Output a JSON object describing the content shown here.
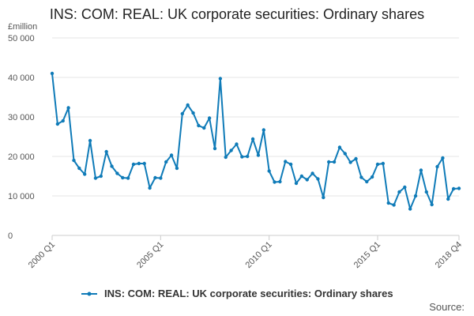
{
  "colors": {
    "series": "#0f7bb8",
    "grid": "#e4e4e4",
    "axis": "#cccccc"
  },
  "labels": {
    "source": "Source:"
  },
  "chart_data": {
    "type": "line",
    "title": "INS: COM: REAL: UK corporate securities: Ordinary shares",
    "ylabel": "£million",
    "xlabel": "",
    "ylim": [
      0,
      50000
    ],
    "yticks": [
      0,
      10000,
      20000,
      30000,
      40000,
      50000
    ],
    "ytick_labels": [
      "0",
      "10 000",
      "20 000",
      "30 000",
      "40 000",
      "50 000"
    ],
    "xtick_labels": [
      "2000 Q1",
      "2005 Q1",
      "2010 Q1",
      "2015 Q1",
      "2018 Q4"
    ],
    "xtick_positions": [
      "2000 Q1",
      "2005 Q1",
      "2010 Q1",
      "2015 Q1",
      "2018 Q4"
    ],
    "grid": "horizontal",
    "legend": "bottom",
    "series": [
      {
        "name": "INS: COM: REAL: UK corporate securities: Ordinary shares",
        "x": [
          "2000 Q1",
          "2000 Q2",
          "2000 Q3",
          "2000 Q4",
          "2001 Q1",
          "2001 Q2",
          "2001 Q3",
          "2001 Q4",
          "2002 Q1",
          "2002 Q2",
          "2002 Q3",
          "2002 Q4",
          "2003 Q1",
          "2003 Q2",
          "2003 Q3",
          "2003 Q4",
          "2004 Q1",
          "2004 Q2",
          "2004 Q3",
          "2004 Q4",
          "2005 Q1",
          "2005 Q2",
          "2005 Q3",
          "2005 Q4",
          "2006 Q1",
          "2006 Q2",
          "2006 Q3",
          "2006 Q4",
          "2007 Q1",
          "2007 Q2",
          "2007 Q3",
          "2007 Q4",
          "2008 Q1",
          "2008 Q2",
          "2008 Q3",
          "2008 Q4",
          "2009 Q1",
          "2009 Q2",
          "2009 Q3",
          "2009 Q4",
          "2010 Q1",
          "2010 Q2",
          "2010 Q3",
          "2010 Q4",
          "2011 Q1",
          "2011 Q2",
          "2011 Q3",
          "2011 Q4",
          "2012 Q1",
          "2012 Q2",
          "2012 Q3",
          "2012 Q4",
          "2013 Q1",
          "2013 Q2",
          "2013 Q3",
          "2013 Q4",
          "2014 Q1",
          "2014 Q2",
          "2014 Q3",
          "2014 Q4",
          "2015 Q1",
          "2015 Q2",
          "2015 Q3",
          "2015 Q4",
          "2016 Q1",
          "2016 Q2",
          "2016 Q3",
          "2016 Q4",
          "2017 Q1",
          "2017 Q2",
          "2017 Q3",
          "2017 Q4",
          "2018 Q1",
          "2018 Q2",
          "2018 Q3",
          "2018 Q4"
        ],
        "values": [
          41000,
          28200,
          29000,
          32300,
          19000,
          17000,
          15500,
          24000,
          14500,
          15000,
          21200,
          17500,
          15700,
          14600,
          14500,
          18000,
          18200,
          18200,
          12000,
          14600,
          14500,
          18600,
          20300,
          17000,
          30800,
          33000,
          31000,
          27800,
          27200,
          29700,
          22000,
          39700,
          19800,
          21500,
          23100,
          19900,
          20000,
          24400,
          20300,
          26700,
          16300,
          13500,
          13600,
          18700,
          18000,
          13200,
          15000,
          14100,
          15700,
          14300,
          9600,
          18600,
          18600,
          22300,
          20700,
          18500,
          19400,
          14700,
          13600,
          14800,
          18000,
          18200,
          8200,
          7700,
          11000,
          12200,
          6700,
          10000,
          16500,
          11000,
          7800,
          17400,
          19600,
          9200,
          11800,
          11900
        ]
      }
    ]
  }
}
